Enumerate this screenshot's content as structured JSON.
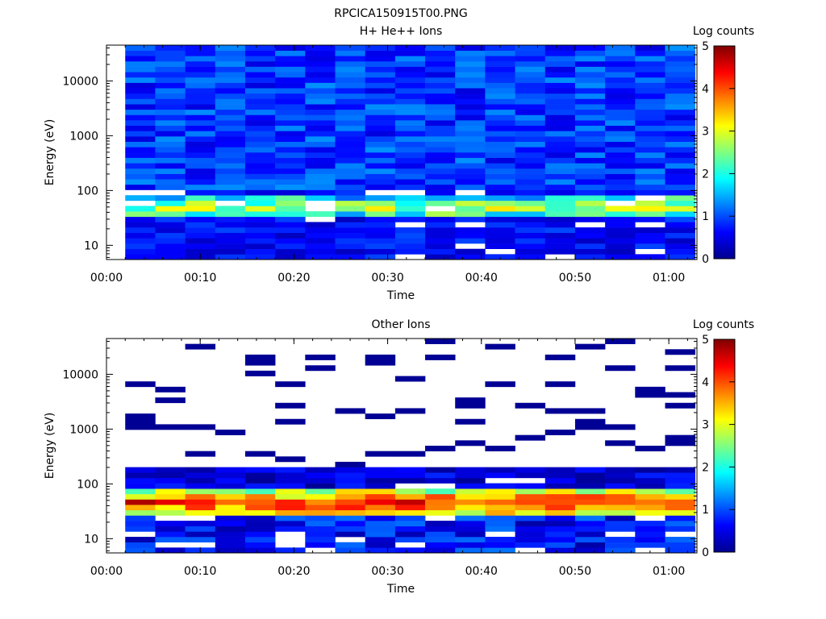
{
  "page_title": "RPCICA150915T00.PNG",
  "panels": [
    {
      "title": "H+ He++ Ions",
      "xlabel": "Time",
      "ylabel": "Energy (eV)",
      "colorbar_label": "Log counts"
    },
    {
      "title": "Other Ions",
      "xlabel": "Time",
      "ylabel": "Energy (eV)",
      "colorbar_label": "Log counts"
    }
  ],
  "chart_data": [
    {
      "type": "heatmap",
      "title": "H+ He++ Ions",
      "xlabel": "Time",
      "ylabel": "Energy (eV)",
      "x_ticks": [
        "00:00",
        "00:10",
        "00:20",
        "00:30",
        "00:40",
        "00:50",
        "01:00"
      ],
      "y_ticks": [
        "10",
        "100",
        "1000",
        "10000"
      ],
      "y_scale": "log",
      "xlim": [
        "00:00",
        "01:03"
      ],
      "ylim": [
        5.5,
        45000
      ],
      "time_bins": 19,
      "time_bin_start": "00:02",
      "time_bin_width_min": 3.2,
      "energy_bins": 40,
      "colorbar": {
        "label": "Log counts",
        "range": [
          0,
          5
        ],
        "ticks": [
          "0",
          "1",
          "2",
          "3",
          "4",
          "5"
        ]
      },
      "colormap": "jet",
      "profile": {
        "low_band_max": 100,
        "peak_energy": 50,
        "peak_log_counts": 2.8,
        "high_energy_level": 0.9,
        "low_energy_level": 0.3
      }
    },
    {
      "type": "heatmap",
      "title": "Other Ions",
      "xlabel": "Time",
      "ylabel": "Energy (eV)",
      "x_ticks": [
        "00:00",
        "00:10",
        "00:20",
        "00:30",
        "00:40",
        "00:50",
        "01:00"
      ],
      "y_ticks": [
        "10",
        "100",
        "1000",
        "10000"
      ],
      "y_scale": "log",
      "xlim": [
        "00:00",
        "01:03"
      ],
      "ylim": [
        5.5,
        45000
      ],
      "time_bins": 19,
      "time_bin_start": "00:02",
      "time_bin_width_min": 3.2,
      "energy_bins": 40,
      "colorbar": {
        "label": "Log counts",
        "range": [
          0,
          5
        ],
        "ticks": [
          "0",
          "1",
          "2",
          "3",
          "4",
          "5"
        ]
      },
      "colormap": "jet",
      "profile": {
        "filled_max_energy": 200,
        "peak_energy": 45,
        "peak_log_counts": 4.3,
        "sparse_above": 200,
        "sparse_level": 0.1
      }
    }
  ]
}
